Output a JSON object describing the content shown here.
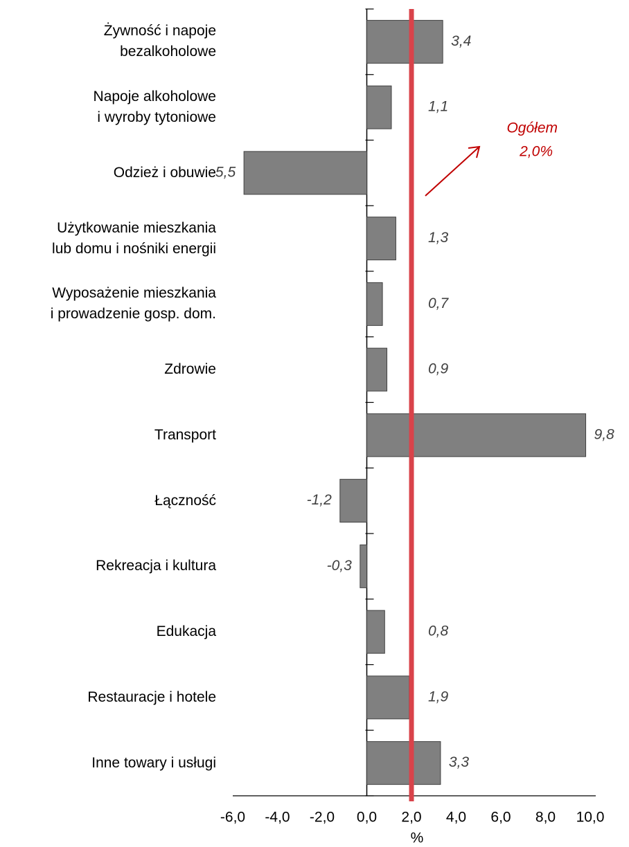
{
  "chart_data": {
    "type": "barh",
    "categories": [
      "Żywność i napoje\nbezalkoholowe",
      "Napoje alkoholowe\ni wyroby tytoniowe",
      "Odzież i obuwie",
      "Użytkowanie mieszkania\nlub domu i nośniki energii",
      "Wyposażenie mieszkania\ni prowadzenie gosp. dom.",
      "Zdrowie",
      "Transport",
      "Łączność",
      "Rekreacja i kultura",
      "Edukacja",
      "Restauracje i hotele",
      "Inne towary i usługi"
    ],
    "values": [
      3.4,
      1.1,
      -5.5,
      1.3,
      0.7,
      0.9,
      9.8,
      -1.2,
      -0.3,
      0.8,
      1.9,
      3.3
    ],
    "value_labels": [
      "3,4",
      "1,1",
      "-5,5",
      "1,3",
      "0,7",
      "0,9",
      "9,8",
      "-1,2",
      "-0,3",
      "0,8",
      "1,9",
      "3,3"
    ],
    "color": "#808080",
    "xlim": [
      -6,
      10
    ],
    "xticks": [
      {
        "value": -6,
        "label": "-6,0"
      },
      {
        "value": -4,
        "label": "-4,0"
      },
      {
        "value": -2,
        "label": "-2,0"
      },
      {
        "value": 0,
        "label": "0,0"
      },
      {
        "value": 2,
        "label": "2,0"
      },
      {
        "value": 4,
        "label": "4,0"
      },
      {
        "value": 6,
        "label": "6,0"
      },
      {
        "value": 8,
        "label": "8,0"
      },
      {
        "value": 10,
        "label": "10,0"
      }
    ],
    "xlabel": "%",
    "reference": {
      "label": "Ogółem",
      "value": 2.0,
      "value_label": "2,0%",
      "color": "#d9434a"
    }
  }
}
